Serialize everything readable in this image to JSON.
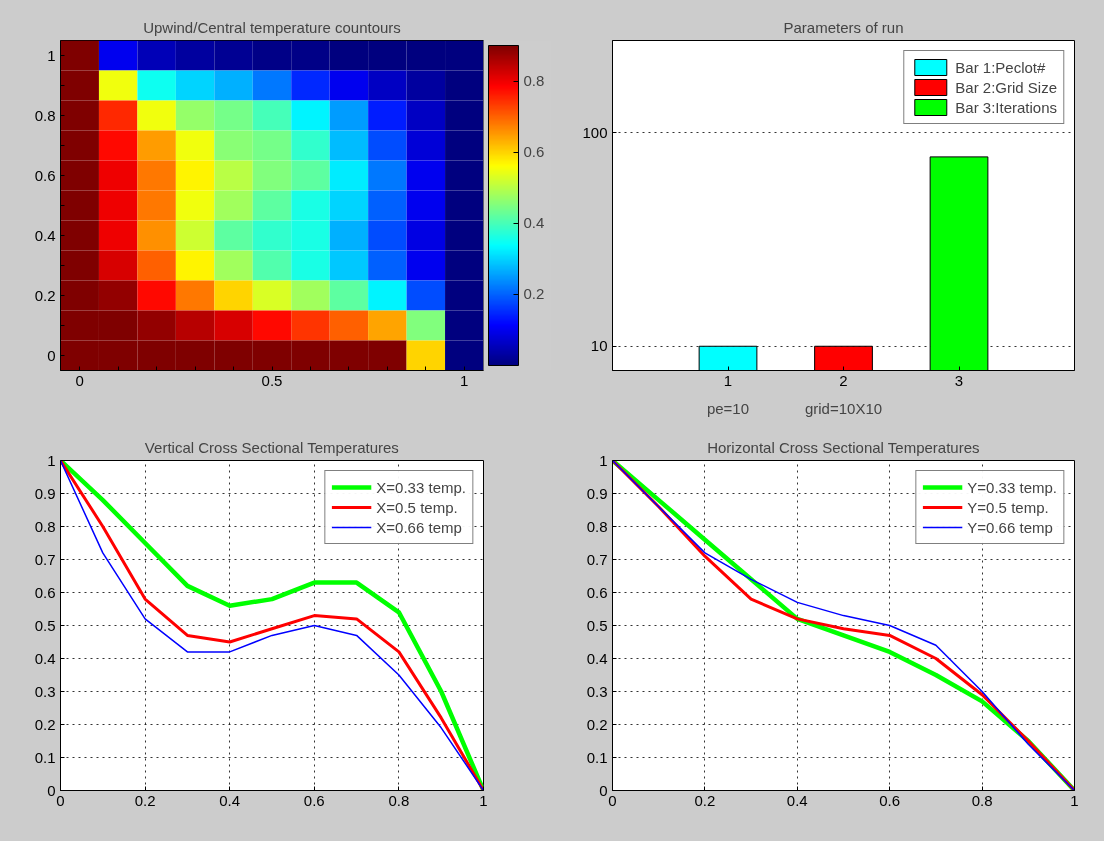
{
  "chart_data": [
    {
      "type": "heatmap",
      "title": "Upwind/Central temperature countours",
      "categories": [
        "0",
        null,
        null,
        null,
        null,
        "0.5",
        null,
        null,
        null,
        null,
        "1"
      ],
      "y_categories": [
        "1",
        null,
        "0.8",
        null,
        "0.6",
        null,
        "0.4",
        null,
        "0.2",
        null,
        "0"
      ],
      "clim": [
        0,
        0.9
      ],
      "cticks": [
        0.2,
        0.4,
        0.6,
        0.8
      ],
      "cells": [
        [
          0.9,
          0.1,
          0.05,
          0.03,
          0.02,
          0.01,
          0.01,
          0,
          0,
          0,
          0
        ],
        [
          0.9,
          0.55,
          0.35,
          0.3,
          0.27,
          0.22,
          0.15,
          0.1,
          0.06,
          0.03,
          0
        ],
        [
          0.9,
          0.75,
          0.55,
          0.47,
          0.44,
          0.4,
          0.33,
          0.25,
          0.14,
          0.06,
          0
        ],
        [
          0.9,
          0.78,
          0.65,
          0.55,
          0.46,
          0.44,
          0.38,
          0.28,
          0.18,
          0.08,
          0
        ],
        [
          0.9,
          0.8,
          0.68,
          0.57,
          0.5,
          0.45,
          0.42,
          0.32,
          0.22,
          0.1,
          0
        ],
        [
          0.9,
          0.8,
          0.68,
          0.55,
          0.48,
          0.42,
          0.36,
          0.3,
          0.2,
          0.1,
          0
        ],
        [
          0.9,
          0.8,
          0.66,
          0.52,
          0.42,
          0.38,
          0.36,
          0.27,
          0.18,
          0.09,
          0
        ],
        [
          0.9,
          0.82,
          0.7,
          0.57,
          0.48,
          0.41,
          0.36,
          0.29,
          0.2,
          0.1,
          0
        ],
        [
          0.9,
          0.88,
          0.78,
          0.68,
          0.6,
          0.53,
          0.48,
          0.42,
          0.33,
          0.18,
          0
        ],
        [
          0.9,
          0.9,
          0.88,
          0.85,
          0.82,
          0.78,
          0.74,
          0.7,
          0.64,
          0.45,
          0
        ],
        [
          0.9,
          0.9,
          0.9,
          0.9,
          0.9,
          0.9,
          0.9,
          0.9,
          0.9,
          0.6,
          0
        ]
      ]
    },
    {
      "type": "bar",
      "title": "Parameters of run",
      "log": "y",
      "grid": "y",
      "legend": "top right",
      "categories": [
        "1",
        "2",
        "3"
      ],
      "ylim": [
        7.7,
        270
      ],
      "yticks": [
        10,
        100
      ],
      "annotations": [
        "pe=10",
        "grid=10X10"
      ],
      "series": [
        {
          "name": "Bar 1:Peclot#",
          "color": "#00ffff",
          "values": [
            10,
            null,
            null
          ]
        },
        {
          "name": "Bar 2:Grid Size",
          "color": "#ff0000",
          "values": [
            null,
            10,
            null
          ]
        },
        {
          "name": "Bar 3:Iterations",
          "color": "#00ff00",
          "values": [
            null,
            null,
            77
          ]
        }
      ]
    },
    {
      "type": "line",
      "title": "Vertical Cross Sectional Temperatures",
      "grid": true,
      "legend": "top right",
      "xlim": [
        0,
        1
      ],
      "xticks": [
        0,
        0.2,
        0.4,
        0.6,
        0.8,
        1
      ],
      "ylim": [
        0,
        1
      ],
      "yticks": [
        0,
        0.1,
        0.2,
        0.3,
        0.4,
        0.5,
        0.6,
        0.7,
        0.8,
        0.9,
        1
      ],
      "x": [
        0,
        0.1,
        0.2,
        0.3,
        0.4,
        0.5,
        0.6,
        0.7,
        0.8,
        0.9,
        1
      ],
      "series": [
        {
          "name": "X=0.33 temp.",
          "color": "#00ff00",
          "values": [
            1,
            0.88,
            0.75,
            0.62,
            0.56,
            0.58,
            0.63,
            0.63,
            0.54,
            0.3,
            0
          ]
        },
        {
          "name": "X=0.5 temp.",
          "color": "#ff0000",
          "values": [
            1,
            0.8,
            0.58,
            0.47,
            0.45,
            0.49,
            0.53,
            0.52,
            0.42,
            0.22,
            0
          ]
        },
        {
          "name": "X=0.66 temp",
          "color": "#0000ff",
          "values": [
            1,
            0.72,
            0.52,
            0.42,
            0.42,
            0.47,
            0.5,
            0.47,
            0.35,
            0.19,
            0
          ]
        }
      ]
    },
    {
      "type": "line",
      "title": "Horizontal Cross Sectional Temperatures",
      "grid": true,
      "legend": "top right",
      "xlim": [
        0,
        1
      ],
      "xticks": [
        0,
        0.2,
        0.4,
        0.6,
        0.8,
        1
      ],
      "ylim": [
        0,
        1
      ],
      "yticks": [
        0,
        0.1,
        0.2,
        0.3,
        0.4,
        0.5,
        0.6,
        0.7,
        0.8,
        0.9,
        1
      ],
      "x": [
        0,
        0.1,
        0.2,
        0.3,
        0.4,
        0.5,
        0.6,
        0.7,
        0.8,
        0.9,
        1
      ],
      "series": [
        {
          "name": "Y=0.33 temp.",
          "color": "#00ff00",
          "values": [
            1,
            0.88,
            0.76,
            0.64,
            0.52,
            0.47,
            0.42,
            0.35,
            0.27,
            0.15,
            0
          ]
        },
        {
          "name": "Y=0.5 temp.",
          "color": "#ff0000",
          "values": [
            1,
            0.86,
            0.71,
            0.58,
            0.52,
            0.49,
            0.47,
            0.4,
            0.29,
            0.15,
            0
          ]
        },
        {
          "name": "Y=0.66 temp",
          "color": "#0000ff",
          "values": [
            1,
            0.86,
            0.72,
            0.64,
            0.57,
            0.53,
            0.5,
            0.44,
            0.3,
            0.14,
            0
          ]
        }
      ]
    }
  ]
}
